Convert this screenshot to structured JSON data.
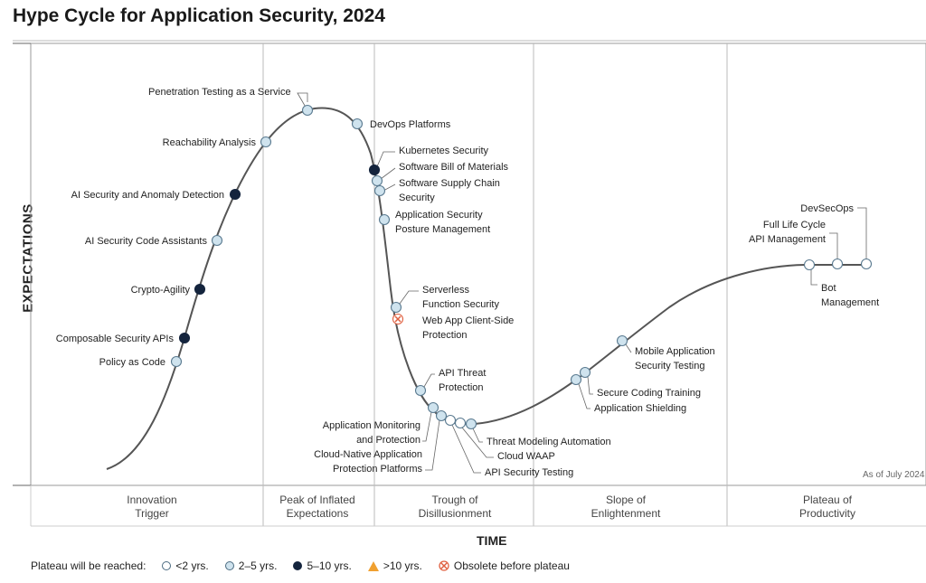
{
  "title": "Hype Cycle for Application Security, 2024",
  "y_axis_label": "EXPECTATIONS",
  "x_axis_label": "TIME",
  "as_of": "As of July 2024",
  "phases": [
    {
      "line1": "Innovation",
      "line2": "Trigger"
    },
    {
      "line1": "Peak of Inflated",
      "line2": "Expectations"
    },
    {
      "line1": "Trough of",
      "line2": "Disillusionment"
    },
    {
      "line1": "Slope of",
      "line2": "Enlightenment"
    },
    {
      "line1": "Plateau of",
      "line2": "Productivity"
    }
  ],
  "legend": {
    "prefix": "Plateau will be reached:",
    "items": [
      {
        "label": "<2 yrs.",
        "symbol": "open-circle"
      },
      {
        "label": "2–5 yrs.",
        "symbol": "light-circle"
      },
      {
        "label": "5–10 yrs.",
        "symbol": "dark-circle"
      },
      {
        "label": ">10 yrs.",
        "symbol": "triangle"
      },
      {
        "label": "Obsolete before plateau",
        "symbol": "x-circle"
      }
    ]
  },
  "colors": {
    "open": "#ffffff",
    "light": "#cfe3ee",
    "dark": "#14243d",
    "triangle": "#f0a030",
    "obsolete": "#e06040",
    "curve": "#555555",
    "outline": "#5a7a90"
  },
  "technologies": [
    {
      "name": "Policy as Code",
      "lines": [
        "Policy as Code"
      ],
      "status": "light"
    },
    {
      "name": "Composable Security APIs",
      "lines": [
        "Composable Security APIs"
      ],
      "status": "dark"
    },
    {
      "name": "Crypto-Agility",
      "lines": [
        "Crypto-Agility"
      ],
      "status": "dark"
    },
    {
      "name": "AI Security Code Assistants",
      "lines": [
        "AI Security Code Assistants"
      ],
      "status": "light"
    },
    {
      "name": "AI Security and Anomaly Detection",
      "lines": [
        "AI Security and Anomaly Detection"
      ],
      "status": "dark"
    },
    {
      "name": "Reachability Analysis",
      "lines": [
        "Reachability Analysis"
      ],
      "status": "light"
    },
    {
      "name": "Penetration Testing as a Service",
      "lines": [
        "Penetration Testing as a Service"
      ],
      "status": "light"
    },
    {
      "name": "DevOps Platforms",
      "lines": [
        "DevOps Platforms"
      ],
      "status": "light"
    },
    {
      "name": "Kubernetes Security",
      "lines": [
        "Kubernetes Security"
      ],
      "status": "dark"
    },
    {
      "name": "Software Bill of Materials",
      "lines": [
        "Software Bill of Materials"
      ],
      "status": "light"
    },
    {
      "name": "Software Supply Chain Security",
      "lines": [
        "Software Supply Chain",
        "Security"
      ],
      "status": "light"
    },
    {
      "name": "Application Security Posture Management",
      "lines": [
        "Application Security",
        "Posture Management"
      ],
      "status": "light"
    },
    {
      "name": "Serverless Function Security",
      "lines": [
        "Serverless",
        "Function Security"
      ],
      "status": "light"
    },
    {
      "name": "Web App Client-Side Protection",
      "lines": [
        "Web App Client-Side",
        "Protection"
      ],
      "status": "obsolete"
    },
    {
      "name": "API Threat Protection",
      "lines": [
        "API Threat",
        "Protection"
      ],
      "status": "light"
    },
    {
      "name": "Application Monitoring and Protection",
      "lines": [
        "Application Monitoring",
        "and Protection"
      ],
      "status": "light"
    },
    {
      "name": "Cloud-Native Application Protection Platforms",
      "lines": [
        "Cloud-Native Application",
        "Protection Platforms"
      ],
      "status": "light"
    },
    {
      "name": "API Security Testing",
      "lines": [
        "API Security Testing"
      ],
      "status": "open"
    },
    {
      "name": "Cloud WAAP",
      "lines": [
        "Cloud WAAP"
      ],
      "status": "open"
    },
    {
      "name": "Threat Modeling Automation",
      "lines": [
        "Threat Modeling Automation"
      ],
      "status": "light"
    },
    {
      "name": "Application Shielding",
      "lines": [
        "Application Shielding"
      ],
      "status": "light"
    },
    {
      "name": "Secure Coding Training",
      "lines": [
        "Secure Coding Training"
      ],
      "status": "light"
    },
    {
      "name": "Mobile Application Security Testing",
      "lines": [
        "Mobile Application",
        "Security Testing"
      ],
      "status": "light"
    },
    {
      "name": "Bot Management",
      "lines": [
        "Bot",
        "Management"
      ],
      "status": "open"
    },
    {
      "name": "Full Life Cycle API Management",
      "lines": [
        "Full Life Cycle",
        "API Management"
      ],
      "status": "open"
    },
    {
      "name": "DevSecOps",
      "lines": [
        "DevSecOps"
      ],
      "status": "open"
    }
  ]
}
